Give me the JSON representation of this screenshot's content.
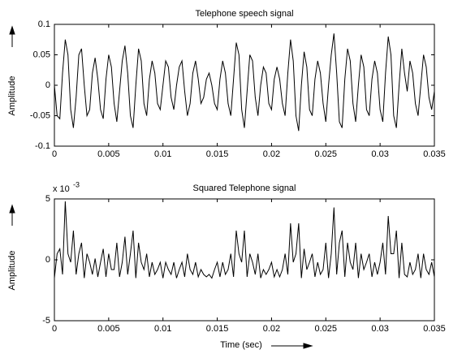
{
  "chart_data": [
    {
      "type": "line",
      "title": "Telephone speech signal",
      "ylabel": "Amplitude",
      "color": "#000000",
      "x": [
        0,
        0.00025,
        0.0005,
        0.00075,
        0.001,
        0.00125,
        0.0015,
        0.00175,
        0.002,
        0.00225,
        0.0025,
        0.00275,
        0.003,
        0.00325,
        0.0035,
        0.00375,
        0.004,
        0.00425,
        0.0045,
        0.00475,
        0.005,
        0.00525,
        0.0055,
        0.00575,
        0.006,
        0.00625,
        0.0065,
        0.00675,
        0.007,
        0.00725,
        0.0075,
        0.00775,
        0.008,
        0.00825,
        0.0085,
        0.00875,
        0.009,
        0.00925,
        0.0095,
        0.00975,
        0.01,
        0.01025,
        0.0105,
        0.01075,
        0.011,
        0.01125,
        0.0115,
        0.01175,
        0.012,
        0.01225,
        0.0125,
        0.01275,
        0.013,
        0.01325,
        0.0135,
        0.01375,
        0.014,
        0.01425,
        0.0145,
        0.01475,
        0.015,
        0.01525,
        0.0155,
        0.01575,
        0.016,
        0.01625,
        0.0165,
        0.01675,
        0.017,
        0.01725,
        0.0175,
        0.01775,
        0.018,
        0.01825,
        0.0185,
        0.01875,
        0.019,
        0.01925,
        0.0195,
        0.01975,
        0.02,
        0.02025,
        0.0205,
        0.02075,
        0.021,
        0.02125,
        0.0215,
        0.02175,
        0.022,
        0.02225,
        0.0225,
        0.02275,
        0.023,
        0.02325,
        0.0235,
        0.02375,
        0.024,
        0.02425,
        0.0245,
        0.02475,
        0.025,
        0.02525,
        0.0255,
        0.02575,
        0.026,
        0.02625,
        0.0265,
        0.02675,
        0.027,
        0.02725,
        0.0275,
        0.02775,
        0.028,
        0.02825,
        0.0285,
        0.02875,
        0.029,
        0.02925,
        0.0295,
        0.02975,
        0.03,
        0.03025,
        0.0305,
        0.03075,
        0.031,
        0.03125,
        0.0315,
        0.03175,
        0.032,
        0.03225,
        0.0325,
        0.03275,
        0.033,
        0.03325,
        0.0335,
        0.03375,
        0.034,
        0.03425,
        0.0345,
        0.03475,
        0.035
      ],
      "values": [
        0,
        -0.05,
        -0.055,
        0.02,
        0.075,
        0.05,
        -0.04,
        -0.07,
        -0.02,
        0.05,
        0.06,
        0.0,
        -0.05,
        -0.04,
        0.02,
        0.045,
        0.01,
        -0.04,
        -0.055,
        0.01,
        0.05,
        0.03,
        -0.03,
        -0.06,
        -0.01,
        0.04,
        0.065,
        0.02,
        -0.05,
        -0.07,
        0.0,
        0.06,
        0.04,
        -0.03,
        -0.05,
        0.01,
        0.04,
        0.02,
        -0.03,
        -0.04,
        0.0,
        0.04,
        0.03,
        -0.02,
        -0.04,
        0.0,
        0.03,
        0.04,
        -0.01,
        -0.05,
        -0.03,
        0.02,
        0.04,
        0.01,
        -0.03,
        -0.02,
        0.01,
        0.02,
        0.0,
        -0.03,
        -0.04,
        0.01,
        0.04,
        0.02,
        -0.03,
        -0.05,
        0.01,
        0.07,
        0.05,
        -0.04,
        -0.07,
        -0.01,
        0.05,
        0.04,
        -0.02,
        -0.05,
        0.0,
        0.03,
        0.02,
        -0.03,
        -0.04,
        0.01,
        0.03,
        0.01,
        -0.03,
        -0.05,
        0.02,
        0.075,
        0.04,
        -0.05,
        -0.075,
        0.0,
        0.055,
        0.03,
        -0.04,
        -0.05,
        0.01,
        0.04,
        0.02,
        -0.03,
        -0.06,
        0.0,
        0.05,
        0.085,
        0.02,
        -0.06,
        -0.07,
        0.01,
        0.06,
        0.04,
        -0.03,
        -0.06,
        0.0,
        0.05,
        0.03,
        -0.04,
        -0.05,
        0.01,
        0.04,
        0.02,
        -0.04,
        -0.06,
        0.02,
        0.08,
        0.05,
        -0.05,
        -0.07,
        0.0,
        0.06,
        0.02,
        -0.01,
        0.04,
        0.02,
        -0.03,
        -0.05,
        0.0,
        0.05,
        0.03,
        -0.02,
        -0.04,
        -0.01
      ],
      "xlim": [
        0,
        0.035
      ],
      "xticks": [
        0,
        0.005,
        0.01,
        0.015,
        0.02,
        0.025,
        0.03,
        0.035
      ],
      "ylim": [
        -0.1,
        0.1
      ],
      "yticks": [
        -0.1,
        -0.05,
        0,
        0.05,
        0.1
      ]
    },
    {
      "type": "line",
      "title": "Squared Telephone signal",
      "ylabel": "Amplitude",
      "xlabel": "Time (sec)",
      "scale_base": "x 10",
      "scale_exponent": "-3",
      "color": "#000000",
      "x": [
        0,
        0.00025,
        0.0005,
        0.00075,
        0.001,
        0.00125,
        0.0015,
        0.00175,
        0.002,
        0.00225,
        0.0025,
        0.00275,
        0.003,
        0.00325,
        0.0035,
        0.00375,
        0.004,
        0.00425,
        0.0045,
        0.00475,
        0.005,
        0.00525,
        0.0055,
        0.00575,
        0.006,
        0.00625,
        0.0065,
        0.00675,
        0.007,
        0.00725,
        0.0075,
        0.00775,
        0.008,
        0.00825,
        0.0085,
        0.00875,
        0.009,
        0.00925,
        0.0095,
        0.00975,
        0.01,
        0.01025,
        0.0105,
        0.01075,
        0.011,
        0.01125,
        0.0115,
        0.01175,
        0.012,
        0.01225,
        0.0125,
        0.01275,
        0.013,
        0.01325,
        0.0135,
        0.01375,
        0.014,
        0.01425,
        0.0145,
        0.01475,
        0.015,
        0.01525,
        0.0155,
        0.01575,
        0.016,
        0.01625,
        0.0165,
        0.01675,
        0.017,
        0.01725,
        0.0175,
        0.01775,
        0.018,
        0.01825,
        0.0185,
        0.01875,
        0.019,
        0.01925,
        0.0195,
        0.01975,
        0.02,
        0.02025,
        0.0205,
        0.02075,
        0.021,
        0.02125,
        0.0215,
        0.02175,
        0.022,
        0.02225,
        0.0225,
        0.02275,
        0.023,
        0.02325,
        0.0235,
        0.02375,
        0.024,
        0.02425,
        0.0245,
        0.02475,
        0.025,
        0.02525,
        0.0255,
        0.02575,
        0.026,
        0.02625,
        0.0265,
        0.02675,
        0.027,
        0.02725,
        0.0275,
        0.02775,
        0.028,
        0.02825,
        0.0285,
        0.02875,
        0.029,
        0.02925,
        0.0295,
        0.02975,
        0.03,
        0.03025,
        0.0305,
        0.03075,
        0.031,
        0.03125,
        0.0315,
        0.03175,
        0.032,
        0.03225,
        0.0325,
        0.03275,
        0.033,
        0.03325,
        0.0335,
        0.03375,
        0.034,
        0.03425,
        0.0345,
        0.03475,
        0.035
      ],
      "values": [
        -1.5,
        0.5,
        0.9,
        -1.2,
        4.8,
        0.5,
        -0.2,
        2.4,
        -1.2,
        0.5,
        1.4,
        -1.5,
        0.5,
        -0.2,
        -1.2,
        0.1,
        -1.4,
        -0.2,
        0.9,
        -1.4,
        0.5,
        -0.8,
        -0.8,
        1.4,
        -1.4,
        -0.2,
        1.9,
        -1.2,
        0.5,
        2.4,
        -1.5,
        1.4,
        -0.2,
        -0.8,
        0.5,
        -1.4,
        -0.2,
        -1.2,
        -0.8,
        -0.2,
        -1.5,
        -0.2,
        -0.8,
        -1.2,
        -0.2,
        -1.5,
        -0.8,
        -0.2,
        -1.4,
        0.5,
        -0.8,
        -1.2,
        -0.2,
        -1.4,
        -0.8,
        -1.2,
        -1.4,
        -1.2,
        -1.5,
        -0.8,
        -0.2,
        -1.4,
        -0.2,
        -1.2,
        -0.8,
        0.5,
        -1.4,
        2.4,
        0.5,
        -0.2,
        2.4,
        -1.4,
        0.5,
        -0.2,
        -1.2,
        0.5,
        -1.5,
        -0.8,
        -1.2,
        -0.8,
        -0.2,
        -1.4,
        -0.8,
        -1.4,
        -0.8,
        0.5,
        -1.2,
        3.0,
        -0.2,
        0.5,
        3.0,
        -1.5,
        0.9,
        -0.8,
        -0.2,
        0.5,
        -1.4,
        -0.2,
        -1.2,
        -0.8,
        1.4,
        -1.5,
        0.5,
        4.3,
        -1.2,
        1.4,
        2.4,
        -1.4,
        1.4,
        -0.2,
        -0.8,
        1.4,
        -1.5,
        0.5,
        -0.8,
        -0.2,
        0.5,
        -1.4,
        -0.2,
        -1.2,
        -0.2,
        1.4,
        -1.2,
        3.6,
        0.5,
        0.5,
        2.4,
        -1.5,
        1.4,
        -1.2,
        -1.4,
        -0.2,
        -1.2,
        -0.8,
        0.5,
        -1.5,
        0.5,
        -0.8,
        -1.2,
        -0.2,
        -1.4
      ],
      "xlim": [
        0,
        0.035
      ],
      "xticks": [
        0,
        0.005,
        0.01,
        0.015,
        0.02,
        0.025,
        0.03,
        0.035
      ],
      "ylim": [
        -5,
        5
      ],
      "yticks": [
        -5,
        0,
        5
      ]
    }
  ]
}
